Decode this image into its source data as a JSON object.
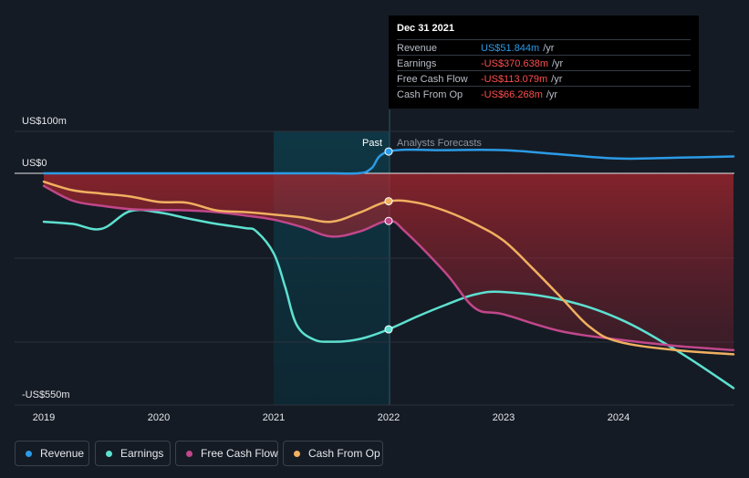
{
  "chart_data": {
    "type": "line",
    "y_axis": {
      "top_label": "US$100m",
      "zero_label": "US$0",
      "bottom_label": "-US$550m",
      "ylim": [
        -550,
        100
      ]
    },
    "x_ticks": [
      "2019",
      "2020",
      "2021",
      "2022",
      "2023",
      "2024"
    ],
    "divider": {
      "past_label": "Past",
      "forecast_label": "Analysts Forecasts",
      "date": 2022.0
    },
    "series": [
      {
        "name": "Revenue",
        "color": "#2b9be6",
        "x": [
          2019.0,
          2019.5,
          2020.0,
          2020.5,
          2021.0,
          2021.5,
          2021.75,
          2021.85,
          2022.0,
          2022.5,
          2023.0,
          2023.5,
          2024.0,
          2024.5,
          2025.0
        ],
        "values": [
          0,
          0,
          0,
          0,
          0,
          0,
          0.5,
          12,
          51.8,
          55,
          55,
          45,
          35,
          37,
          40
        ]
      },
      {
        "name": "Earnings",
        "color": "#5de0d0",
        "x": [
          2019.0,
          2019.25,
          2019.5,
          2019.75,
          2020.0,
          2020.25,
          2020.5,
          2020.75,
          2020.85,
          2021.0,
          2021.1,
          2021.2,
          2021.35,
          2021.5,
          2021.65,
          2021.8,
          2022.0,
          2022.25,
          2022.5,
          2022.75,
          2023.0,
          2023.5,
          2024.0,
          2024.5,
          2025.0
        ],
        "values": [
          -115,
          -120,
          -132,
          -90,
          -93,
          -107,
          -120,
          -130,
          -138,
          -190,
          -270,
          -360,
          -395,
          -400,
          -398,
          -390,
          -370.6,
          -340,
          -312,
          -288,
          -282,
          -300,
          -345,
          -420,
          -510
        ]
      },
      {
        "name": "Free Cash Flow",
        "color": "#c0478a",
        "x": [
          2019.0,
          2019.25,
          2019.5,
          2019.75,
          2020.0,
          2020.25,
          2020.5,
          2020.75,
          2021.0,
          2021.25,
          2021.5,
          2021.75,
          2022.0,
          2022.15,
          2022.5,
          2022.75,
          2023.0,
          2023.5,
          2024.0,
          2024.5,
          2025.0
        ],
        "values": [
          -30,
          -65,
          -77,
          -85,
          -87,
          -88,
          -92,
          -100,
          -110,
          -128,
          -150,
          -138,
          -113.1,
          -140,
          -238,
          -320,
          -335,
          -375,
          -395,
          -410,
          -420
        ]
      },
      {
        "name": "Cash From Op",
        "color": "#f0b060",
        "x": [
          2019.0,
          2019.25,
          2019.5,
          2019.75,
          2020.0,
          2020.25,
          2020.5,
          2020.75,
          2021.0,
          2021.25,
          2021.5,
          2021.75,
          2022.0,
          2022.25,
          2022.5,
          2022.75,
          2023.0,
          2023.25,
          2023.5,
          2023.75,
          2024.0,
          2024.5,
          2025.0
        ],
        "values": [
          -20,
          -40,
          -48,
          -55,
          -68,
          -70,
          -88,
          -92,
          -98,
          -105,
          -115,
          -93,
          -66.3,
          -70,
          -90,
          -120,
          -160,
          -225,
          -295,
          -365,
          -400,
          -420,
          -430
        ]
      }
    ]
  },
  "tooltip": {
    "date": "Dec 31 2021",
    "unit": "/yr",
    "rows": [
      {
        "label": "Revenue",
        "value": "US$51.844m",
        "color": "#2b9be6"
      },
      {
        "label": "Earnings",
        "value": "-US$370.638m",
        "color": "#ff4d4d"
      },
      {
        "label": "Free Cash Flow",
        "value": "-US$113.079m",
        "color": "#ff4d4d"
      },
      {
        "label": "Cash From Op",
        "value": "-US$66.268m",
        "color": "#ff4d4d"
      }
    ]
  },
  "legend": [
    {
      "label": "Revenue",
      "color": "#2b9be6"
    },
    {
      "label": "Earnings",
      "color": "#5de0d0"
    },
    {
      "label": "Free Cash Flow",
      "color": "#c0478a"
    },
    {
      "label": "Cash From Op",
      "color": "#f0b060"
    }
  ]
}
